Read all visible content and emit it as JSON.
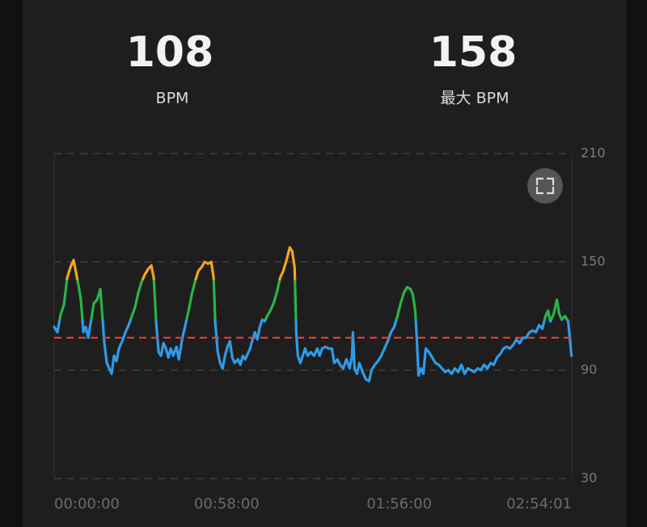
{
  "stats": [
    {
      "value": 108,
      "label": "BPM"
    },
    {
      "value": 158,
      "label": "最大 BPM"
    }
  ],
  "chart_data": {
    "type": "line",
    "x": [
      0,
      65,
      131,
      196,
      261,
      327,
      392,
      441,
      490,
      539,
      588,
      637,
      686,
      735,
      800,
      865,
      931,
      963,
      1012,
      1061,
      1110,
      1159,
      1208,
      1257,
      1306,
      1372,
      1437,
      1502,
      1568,
      1633,
      1698,
      1764,
      1829,
      1894,
      1960,
      2009,
      2058,
      2107,
      2156,
      2205,
      2254,
      2303,
      2352,
      2401,
      2466,
      2515,
      2580,
      2646,
      2711,
      2776,
      2841,
      2907,
      2972,
      3037,
      3103,
      3168,
      3217,
      3250,
      3299,
      3348,
      3397,
      3446,
      3495,
      3544,
      3593,
      3642,
      3707,
      3756,
      3805,
      3854,
      3903,
      3952,
      4001,
      4050,
      4099,
      4148,
      4197,
      4246,
      4295,
      4360,
      4425,
      4491,
      4556,
      4621,
      4687,
      4752,
      4801,
      4850,
      4883,
      4915,
      4964,
      5013,
      5062,
      5111,
      5177,
      5242,
      5307,
      5356,
      5405,
      5471,
      5536,
      5601,
      5650,
      5715,
      5764,
      5830,
      5895,
      5960,
      6009,
      6026,
      6058,
      6107,
      6156,
      6222,
      6287,
      6352,
      6401,
      6467,
      6532,
      6597,
      6663,
      6728,
      6793,
      6859,
      6924,
      6989,
      7055,
      7120,
      7185,
      7234,
      7283,
      7316,
      7349,
      7398,
      7447,
      7496,
      7561,
      7626,
      7691,
      7757,
      7822,
      7887,
      7953,
      8018,
      8083,
      8149,
      8214,
      8279,
      8345,
      8410,
      8475,
      8541,
      8606,
      8671,
      8737,
      8802,
      8867,
      8933,
      8998,
      9063,
      9129,
      9194,
      9259,
      9324,
      9390,
      9455,
      9520,
      9586,
      9651,
      9716,
      9782,
      9847,
      9912,
      9961,
      10010,
      10075,
      10141,
      10190,
      10239,
      10304,
      10369,
      10435
    ],
    "values": [
      114,
      111,
      121,
      126,
      141,
      147,
      151,
      144,
      137,
      129,
      111,
      114,
      108,
      116,
      127,
      129,
      135,
      123,
      105,
      94,
      91,
      88,
      98,
      95,
      102,
      106,
      111,
      115,
      120,
      125,
      133,
      139,
      143,
      146,
      148,
      141,
      116,
      100,
      98,
      105,
      102,
      97,
      102,
      98,
      103,
      96,
      107,
      115,
      123,
      132,
      139,
      145,
      147,
      150,
      149,
      150,
      141,
      116,
      100,
      94,
      91,
      98,
      103,
      106,
      97,
      94,
      96,
      93,
      98,
      96,
      99,
      102,
      107,
      111,
      107,
      114,
      118,
      117,
      120,
      123,
      127,
      133,
      141,
      145,
      151,
      158,
      156,
      147,
      111,
      98,
      94,
      98,
      102,
      98,
      100,
      98,
      102,
      98,
      102,
      103,
      102,
      102,
      94,
      96,
      93,
      91,
      96,
      91,
      98,
      111,
      91,
      88,
      94,
      89,
      85,
      84,
      90,
      93,
      95,
      98,
      102,
      106,
      111,
      114,
      120,
      127,
      133,
      136,
      135,
      132,
      123,
      107,
      87,
      91,
      88,
      102,
      100,
      97,
      94,
      93,
      91,
      89,
      90,
      88,
      91,
      89,
      93,
      88,
      91,
      90,
      89,
      91,
      90,
      93,
      91,
      94,
      93,
      97,
      99,
      102,
      103,
      102,
      104,
      107,
      105,
      108,
      108,
      111,
      112,
      111,
      115,
      113,
      120,
      123,
      117,
      121,
      129,
      121,
      118,
      120,
      117,
      98
    ],
    "line_colors": [
      {
        "min": 140,
        "color": "#f2a51c"
      },
      {
        "min": 118,
        "color": "#2bb24c"
      },
      {
        "color": "#2e9be8"
      }
    ],
    "average_color": "#e5413b",
    "xlim": [
      0,
      10441
    ],
    "xticks": [
      {
        "value": 0,
        "label": "00:00:00"
      },
      {
        "value": 3480,
        "label": "00:58:00"
      },
      {
        "value": 6960,
        "label": "01:56:00"
      },
      {
        "value": 10441,
        "label": "02:54:01"
      }
    ],
    "ylim": [
      30,
      210
    ],
    "yticks": [
      30,
      90,
      150,
      210
    ],
    "grid": true
  }
}
